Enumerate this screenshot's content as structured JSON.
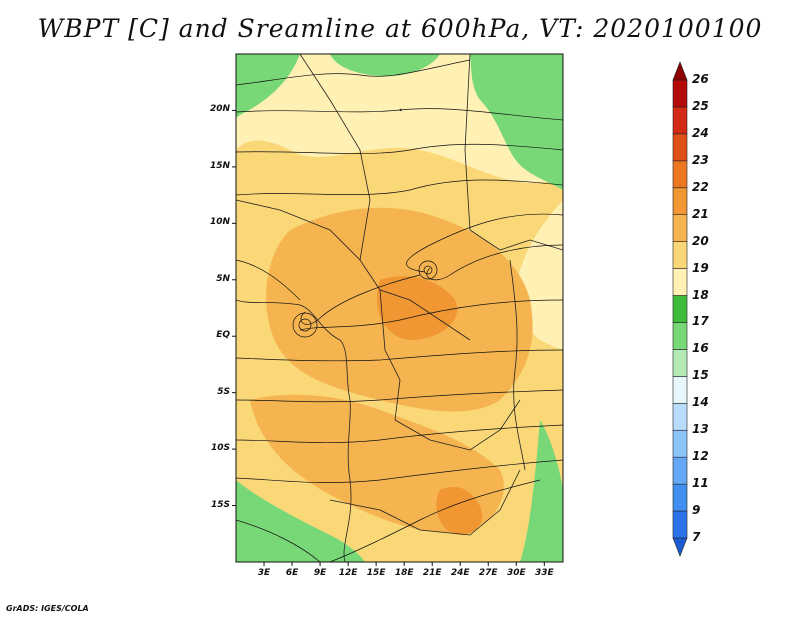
{
  "title": "WBPT [C] and Sreamline at 600hPa, VT: 2020100100",
  "credit": "GrADS: IGES/COLA",
  "map": {
    "lat_labels": [
      "20N",
      "15N",
      "10N",
      "5N",
      "EQ",
      "5S",
      "10S",
      "15S"
    ],
    "lat_values": [
      20,
      15,
      10,
      5,
      0,
      -5,
      -10,
      -15
    ],
    "lon_labels": [
      "3E",
      "6E",
      "9E",
      "12E",
      "15E",
      "18E",
      "21E",
      "24E",
      "27E",
      "30E",
      "33E"
    ],
    "lon_values": [
      3,
      6,
      9,
      12,
      15,
      18,
      21,
      24,
      27,
      30,
      33
    ],
    "lat_range": [
      -20,
      25
    ],
    "lon_range": [
      0,
      35
    ]
  },
  "colorbar": {
    "labels": [
      "7",
      "9",
      "11",
      "12",
      "13",
      "14",
      "15",
      "16",
      "17",
      "18",
      "19",
      "20",
      "21",
      "22",
      "23",
      "24",
      "25",
      "26"
    ],
    "colors": [
      "#1e5ad2",
      "#2a74e8",
      "#3f8ef0",
      "#64a8f6",
      "#8cc4fa",
      "#b8dcfc",
      "#e6f6fa",
      "#b4eab4",
      "#78d878",
      "#3cbe3c",
      "#fff0b4",
      "#fad878",
      "#f5b450",
      "#f09632",
      "#eb7820",
      "#e15014",
      "#d22814",
      "#b40a0a",
      "#8c0000"
    ]
  }
}
